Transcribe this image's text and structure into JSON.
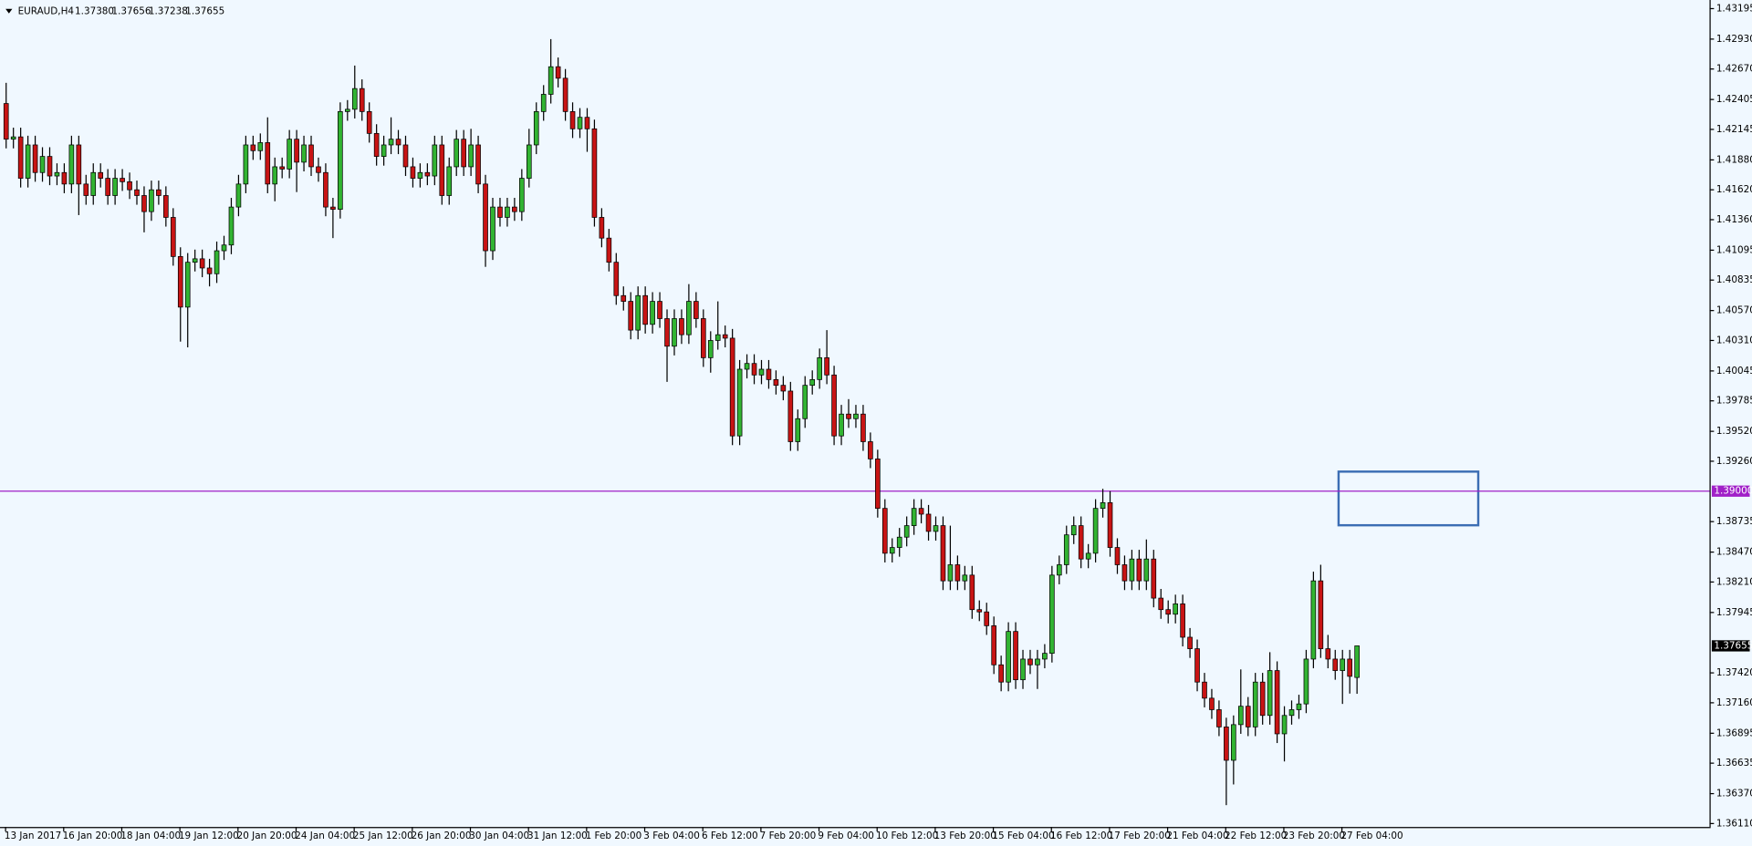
{
  "chart_data": {
    "type": "candlestick",
    "title": "EURAUD,H4",
    "title_values": [
      "1.37380",
      "1.37656",
      "1.37238",
      "1.37655"
    ],
    "up_color": "#32b432",
    "down_color": "#c81414",
    "ylim": [
      1.3608,
      1.4327
    ],
    "yticks": [
      1.43195,
      {
        "value": 1.4293,
        "label": "1.42930"
      },
      {
        "value": 1.4267,
        "label": "1.42670"
      },
      1.42405,
      1.42145,
      {
        "value": 1.4188,
        "label": "1.41880"
      },
      {
        "value": 1.4162,
        "label": "1.41620"
      },
      {
        "value": 1.4136,
        "label": "1.41360"
      },
      1.41095,
      1.40835,
      {
        "value": 1.4057,
        "label": "1.40570"
      },
      {
        "value": 1.4031,
        "label": "1.40310"
      },
      1.40045,
      1.39785,
      {
        "value": 1.3952,
        "label": "1.39520"
      },
      {
        "value": 1.3926,
        "label": "1.39260"
      },
      1.38735,
      {
        "value": 1.3847,
        "label": "1.38470"
      },
      {
        "value": 1.3821,
        "label": "1.38210"
      },
      1.37945,
      {
        "value": 1.3742,
        "label": "1.37420"
      },
      {
        "value": 1.3716,
        "label": "1.37160"
      },
      1.36895,
      1.36635,
      {
        "value": 1.3637,
        "label": "1.36370"
      },
      {
        "value": 1.3611,
        "label": "1.36110"
      }
    ],
    "price_line": {
      "value": 1.39,
      "label": "1.39000",
      "color": "#a020c8"
    },
    "last_price": {
      "value": 1.37655,
      "label": "1.37655"
    },
    "categories": [
      "13 Jan 2017",
      null,
      null,
      null,
      null,
      null,
      null,
      null,
      "16 Jan 20:00",
      null,
      null,
      null,
      null,
      null,
      null,
      null,
      "18 Jan 04:00",
      null,
      null,
      null,
      null,
      null,
      null,
      null,
      "19 Jan 12:00",
      null,
      null,
      null,
      null,
      null,
      null,
      null,
      "20 Jan 20:00",
      null,
      null,
      null,
      null,
      null,
      null,
      null,
      "24 Jan 04:00",
      null,
      null,
      null,
      null,
      null,
      null,
      null,
      "25 Jan 12:00",
      null,
      null,
      null,
      null,
      null,
      null,
      null,
      "26 Jan 20:00",
      null,
      null,
      null,
      null,
      null,
      null,
      null,
      "30 Jan 04:00",
      null,
      null,
      null,
      null,
      null,
      null,
      null,
      "31 Jan 12:00",
      null,
      null,
      null,
      null,
      null,
      null,
      null,
      "1 Feb 20:00",
      null,
      null,
      null,
      null,
      null,
      null,
      null,
      "3 Feb 04:00",
      null,
      null,
      null,
      null,
      null,
      null,
      null,
      "6 Feb 12:00",
      null,
      null,
      null,
      null,
      null,
      null,
      null,
      "7 Feb 20:00",
      null,
      null,
      null,
      null,
      null,
      null,
      null,
      "9 Feb 04:00",
      null,
      null,
      null,
      null,
      null,
      null,
      null,
      "10 Feb 12:00",
      null,
      null,
      null,
      null,
      null,
      null,
      null,
      "13 Feb 20:00",
      null,
      null,
      null,
      null,
      null,
      null,
      null,
      "15 Feb 04:00",
      null,
      null,
      null,
      null,
      null,
      null,
      null,
      "16 Feb 12:00",
      null,
      null,
      null,
      null,
      null,
      null,
      null,
      "17 Feb 20:00",
      null,
      null,
      null,
      null,
      null,
      null,
      null,
      "21 Feb 04:00",
      null,
      null,
      null,
      null,
      null,
      null,
      null,
      "22 Feb 12:00",
      null,
      null,
      null,
      null,
      null,
      null,
      null,
      "23 Feb 20:00",
      null,
      null,
      null,
      null,
      null,
      null,
      null,
      "27 Feb 04:00",
      null,
      null
    ],
    "ohlc": [
      [
        1.4237,
        1.4255,
        1.4198,
        1.4206
      ],
      [
        1.4206,
        1.4216,
        1.4198,
        1.4208
      ],
      [
        1.4208,
        1.4216,
        1.4164,
        1.4172
      ],
      [
        1.4172,
        1.4209,
        1.4164,
        1.4201
      ],
      [
        1.4201,
        1.4209,
        1.4169,
        1.4177
      ],
      [
        1.4177,
        1.4199,
        1.4169,
        1.4191
      ],
      [
        1.4191,
        1.4199,
        1.4166,
        1.4174
      ],
      [
        1.4174,
        1.4185,
        1.4166,
        1.4177
      ],
      [
        1.4177,
        1.4185,
        1.4159,
        1.4167
      ],
      [
        1.4167,
        1.4209,
        1.4159,
        1.4201
      ],
      [
        1.4201,
        1.4209,
        1.414,
        1.4167
      ],
      [
        1.4167,
        1.4175,
        1.4149,
        1.4157
      ],
      [
        1.4157,
        1.4185,
        1.4149,
        1.4177
      ],
      [
        1.4177,
        1.4185,
        1.4164,
        1.4172
      ],
      [
        1.4172,
        1.418,
        1.4149,
        1.4157
      ],
      [
        1.4157,
        1.418,
        1.4149,
        1.4172
      ],
      [
        1.4172,
        1.418,
        1.4161,
        1.4169
      ],
      [
        1.4169,
        1.4177,
        1.4154,
        1.4162
      ],
      [
        1.4162,
        1.417,
        1.4149,
        1.4157
      ],
      [
        1.4157,
        1.4165,
        1.4125,
        1.4143
      ],
      [
        1.4143,
        1.417,
        1.4135,
        1.4162
      ],
      [
        1.4162,
        1.417,
        1.4149,
        1.4157
      ],
      [
        1.4157,
        1.4165,
        1.413,
        1.4138
      ],
      [
        1.4138,
        1.4146,
        1.4096,
        1.4104
      ],
      [
        1.4104,
        1.4112,
        1.403,
        1.406
      ],
      [
        1.406,
        1.4107,
        1.4025,
        1.4099
      ],
      [
        1.4099,
        1.411,
        1.4091,
        1.4102
      ],
      [
        1.4102,
        1.411,
        1.4086,
        1.4094
      ],
      [
        1.4094,
        1.4102,
        1.4078,
        1.4089
      ],
      [
        1.4089,
        1.4117,
        1.4081,
        1.4109
      ],
      [
        1.4109,
        1.4122,
        1.4101,
        1.4114
      ],
      [
        1.4114,
        1.4155,
        1.4106,
        1.4147
      ],
      [
        1.4147,
        1.4175,
        1.4139,
        1.4167
      ],
      [
        1.4167,
        1.4209,
        1.4159,
        1.4201
      ],
      [
        1.4201,
        1.4209,
        1.4188,
        1.4196
      ],
      [
        1.4196,
        1.4211,
        1.4188,
        1.4203
      ],
      [
        1.4203,
        1.4225,
        1.4159,
        1.4167
      ],
      [
        1.4167,
        1.419,
        1.4152,
        1.4182
      ],
      [
        1.4182,
        1.419,
        1.4172,
        1.418
      ],
      [
        1.418,
        1.4214,
        1.4172,
        1.4206
      ],
      [
        1.4206,
        1.4214,
        1.416,
        1.4186
      ],
      [
        1.4186,
        1.4209,
        1.4178,
        1.4201
      ],
      [
        1.4201,
        1.4209,
        1.4174,
        1.4182
      ],
      [
        1.4182,
        1.419,
        1.4169,
        1.4177
      ],
      [
        1.4177,
        1.4185,
        1.4139,
        1.4147
      ],
      [
        1.4147,
        1.4155,
        1.412,
        1.4145
      ],
      [
        1.4145,
        1.4238,
        1.4137,
        1.423
      ],
      [
        1.423,
        1.424,
        1.4222,
        1.4232
      ],
      [
        1.4232,
        1.427,
        1.4224,
        1.425
      ],
      [
        1.425,
        1.4258,
        1.4222,
        1.423
      ],
      [
        1.423,
        1.4238,
        1.4203,
        1.4211
      ],
      [
        1.4211,
        1.4219,
        1.4183,
        1.4191
      ],
      [
        1.4191,
        1.4209,
        1.4183,
        1.4201
      ],
      [
        1.4201,
        1.4225,
        1.4193,
        1.4206
      ],
      [
        1.4206,
        1.4214,
        1.4193,
        1.4201
      ],
      [
        1.4201,
        1.4209,
        1.4174,
        1.4182
      ],
      [
        1.4182,
        1.419,
        1.4164,
        1.4172
      ],
      [
        1.4172,
        1.4185,
        1.4164,
        1.4177
      ],
      [
        1.4177,
        1.4185,
        1.4166,
        1.4174
      ],
      [
        1.4174,
        1.4209,
        1.4166,
        1.4201
      ],
      [
        1.4201,
        1.4209,
        1.4149,
        1.4157
      ],
      [
        1.4157,
        1.419,
        1.4149,
        1.4182
      ],
      [
        1.4182,
        1.4214,
        1.4174,
        1.4206
      ],
      [
        1.4206,
        1.4214,
        1.4174,
        1.4182
      ],
      [
        1.4182,
        1.4215,
        1.4174,
        1.4201
      ],
      [
        1.4201,
        1.4209,
        1.4159,
        1.4167
      ],
      [
        1.4167,
        1.4175,
        1.4095,
        1.4109
      ],
      [
        1.4109,
        1.4155,
        1.4101,
        1.4147
      ],
      [
        1.4147,
        1.4155,
        1.413,
        1.4138
      ],
      [
        1.4138,
        1.4155,
        1.413,
        1.4147
      ],
      [
        1.4147,
        1.4155,
        1.4135,
        1.4143
      ],
      [
        1.4143,
        1.418,
        1.4135,
        1.4172
      ],
      [
        1.4172,
        1.4215,
        1.4164,
        1.4201
      ],
      [
        1.4201,
        1.4238,
        1.4193,
        1.423
      ],
      [
        1.423,
        1.4253,
        1.4222,
        1.4245
      ],
      [
        1.4245,
        1.4293,
        1.4237,
        1.4269
      ],
      [
        1.4269,
        1.4277,
        1.4251,
        1.4259
      ],
      [
        1.4259,
        1.4267,
        1.4222,
        1.423
      ],
      [
        1.423,
        1.4238,
        1.4207,
        1.4215
      ],
      [
        1.4215,
        1.4233,
        1.4207,
        1.4225
      ],
      [
        1.4225,
        1.4233,
        1.4195,
        1.4215
      ],
      [
        1.4215,
        1.4223,
        1.413,
        1.4138
      ],
      [
        1.4138,
        1.4146,
        1.4112,
        1.412
      ],
      [
        1.412,
        1.4128,
        1.4091,
        1.4099
      ],
      [
        1.4099,
        1.4107,
        1.4062,
        1.407
      ],
      [
        1.407,
        1.4078,
        1.4057,
        1.4065
      ],
      [
        1.4065,
        1.4073,
        1.4032,
        1.404
      ],
      [
        1.404,
        1.4078,
        1.4032,
        1.407
      ],
      [
        1.407,
        1.4078,
        1.4037,
        1.4045
      ],
      [
        1.4045,
        1.4073,
        1.4037,
        1.4065
      ],
      [
        1.4065,
        1.4073,
        1.4042,
        1.405
      ],
      [
        1.405,
        1.4058,
        1.3995,
        1.4026
      ],
      [
        1.4026,
        1.4058,
        1.4018,
        1.405
      ],
      [
        1.405,
        1.4058,
        1.4028,
        1.4036
      ],
      [
        1.4036,
        1.408,
        1.4028,
        1.4065
      ],
      [
        1.4065,
        1.4073,
        1.4042,
        1.405
      ],
      [
        1.405,
        1.4058,
        1.4008,
        1.4016
      ],
      [
        1.4016,
        1.4039,
        1.4003,
        1.4031
      ],
      [
        1.4031,
        1.4065,
        1.4023,
        1.4036
      ],
      [
        1.4036,
        1.4044,
        1.4025,
        1.4033
      ],
      [
        1.4033,
        1.4041,
        1.394,
        1.3948
      ],
      [
        1.3948,
        1.4014,
        1.394,
        1.4006
      ],
      [
        1.4006,
        1.4019,
        1.3998,
        1.4011
      ],
      [
        1.4011,
        1.4019,
        1.3993,
        1.4001
      ],
      [
        1.4001,
        1.4014,
        1.3993,
        1.4006
      ],
      [
        1.4006,
        1.4014,
        1.3989,
        1.3997
      ],
      [
        1.3997,
        1.4005,
        1.3984,
        1.3992
      ],
      [
        1.3992,
        1.4,
        1.3979,
        1.3987
      ],
      [
        1.3987,
        1.3995,
        1.3935,
        1.3943
      ],
      [
        1.3943,
        1.3971,
        1.3935,
        1.3963
      ],
      [
        1.3963,
        1.4,
        1.3955,
        1.3992
      ],
      [
        1.3992,
        1.4005,
        1.3984,
        1.3997
      ],
      [
        1.3997,
        1.4024,
        1.3989,
        1.4016
      ],
      [
        1.4016,
        1.404,
        1.3993,
        1.4001
      ],
      [
        1.4001,
        1.4009,
        1.394,
        1.3948
      ],
      [
        1.3948,
        1.3975,
        1.394,
        1.3967
      ],
      [
        1.3967,
        1.398,
        1.3955,
        1.3963
      ],
      [
        1.3963,
        1.3975,
        1.3955,
        1.3967
      ],
      [
        1.3967,
        1.3975,
        1.3935,
        1.3943
      ],
      [
        1.3943,
        1.3951,
        1.392,
        1.3928
      ],
      [
        1.3928,
        1.3936,
        1.3877,
        1.3885
      ],
      [
        1.3885,
        1.3893,
        1.3838,
        1.3846
      ],
      [
        1.3846,
        1.3859,
        1.3838,
        1.3851
      ],
      [
        1.3851,
        1.3868,
        1.3843,
        1.386
      ],
      [
        1.386,
        1.3878,
        1.3852,
        1.387
      ],
      [
        1.387,
        1.3893,
        1.3862,
        1.3885
      ],
      [
        1.3885,
        1.3893,
        1.3872,
        1.388
      ],
      [
        1.388,
        1.3888,
        1.3857,
        1.3865
      ],
      [
        1.3865,
        1.3878,
        1.3857,
        1.387
      ],
      [
        1.387,
        1.3878,
        1.3814,
        1.3822
      ],
      [
        1.3822,
        1.387,
        1.3814,
        1.3836
      ],
      [
        1.3836,
        1.3844,
        1.3814,
        1.3822
      ],
      [
        1.3822,
        1.3835,
        1.3814,
        1.3827
      ],
      [
        1.3827,
        1.3835,
        1.3789,
        1.3797
      ],
      [
        1.3797,
        1.3805,
        1.3787,
        1.3795
      ],
      [
        1.3795,
        1.3803,
        1.3775,
        1.3783
      ],
      [
        1.3783,
        1.3791,
        1.3741,
        1.3749
      ],
      [
        1.3749,
        1.3757,
        1.3726,
        1.3734
      ],
      [
        1.3734,
        1.3786,
        1.3726,
        1.3778
      ],
      [
        1.3778,
        1.3786,
        1.3728,
        1.3736
      ],
      [
        1.3736,
        1.3762,
        1.3728,
        1.3754
      ],
      [
        1.3754,
        1.3762,
        1.3741,
        1.3749
      ],
      [
        1.3749,
        1.3762,
        1.3728,
        1.3754
      ],
      [
        1.3754,
        1.3767,
        1.3746,
        1.3759
      ],
      [
        1.3759,
        1.3835,
        1.3751,
        1.3827
      ],
      [
        1.3827,
        1.3844,
        1.3819,
        1.3836
      ],
      [
        1.3836,
        1.387,
        1.3828,
        1.3862
      ],
      [
        1.3862,
        1.3878,
        1.3854,
        1.387
      ],
      [
        1.387,
        1.3878,
        1.3833,
        1.3841
      ],
      [
        1.3841,
        1.3854,
        1.3833,
        1.3846
      ],
      [
        1.3846,
        1.3893,
        1.3838,
        1.3885
      ],
      [
        1.3885,
        1.3902,
        1.3877,
        1.389
      ],
      [
        1.389,
        1.39,
        1.3843,
        1.3851
      ],
      [
        1.3851,
        1.3859,
        1.3828,
        1.3836
      ],
      [
        1.3836,
        1.3844,
        1.3814,
        1.3822
      ],
      [
        1.3822,
        1.3849,
        1.3814,
        1.3841
      ],
      [
        1.3841,
        1.3849,
        1.3814,
        1.3822
      ],
      [
        1.3822,
        1.3858,
        1.3814,
        1.3841
      ],
      [
        1.3841,
        1.3849,
        1.3799,
        1.3807
      ],
      [
        1.3807,
        1.3815,
        1.3789,
        1.3797
      ],
      [
        1.3797,
        1.3805,
        1.3785,
        1.3793
      ],
      [
        1.3793,
        1.381,
        1.3785,
        1.3802
      ],
      [
        1.3802,
        1.381,
        1.3765,
        1.3773
      ],
      [
        1.3773,
        1.3781,
        1.3755,
        1.3763
      ],
      [
        1.3763,
        1.3771,
        1.3726,
        1.3734
      ],
      [
        1.3734,
        1.3742,
        1.3712,
        1.372
      ],
      [
        1.372,
        1.3728,
        1.3702,
        1.371
      ],
      [
        1.371,
        1.3718,
        1.3687,
        1.3695
      ],
      [
        1.3695,
        1.3703,
        1.3627,
        1.3666
      ],
      [
        1.3666,
        1.3705,
        1.3645,
        1.3697
      ],
      [
        1.3697,
        1.3745,
        1.3689,
        1.3713
      ],
      [
        1.3713,
        1.3721,
        1.3687,
        1.3695
      ],
      [
        1.3695,
        1.3742,
        1.3687,
        1.3734
      ],
      [
        1.3734,
        1.3742,
        1.3697,
        1.3705
      ],
      [
        1.3705,
        1.376,
        1.3697,
        1.3744
      ],
      [
        1.3744,
        1.3752,
        1.3681,
        1.3689
      ],
      [
        1.3689,
        1.3713,
        1.3665,
        1.3705
      ],
      [
        1.3705,
        1.3718,
        1.3697,
        1.371
      ],
      [
        1.371,
        1.3723,
        1.3702,
        1.3715
      ],
      [
        1.3715,
        1.3762,
        1.3707,
        1.3754
      ],
      [
        1.3754,
        1.383,
        1.3746,
        1.3822
      ],
      [
        1.3822,
        1.3836,
        1.3755,
        1.3763
      ],
      [
        1.3763,
        1.3775,
        1.3746,
        1.3754
      ],
      [
        1.3754,
        1.3762,
        1.3736,
        1.3744
      ],
      [
        1.3744,
        1.3762,
        1.3715,
        1.3754
      ],
      [
        1.3754,
        1.3762,
        1.3724,
        1.3739
      ],
      [
        1.3738,
        1.37656,
        1.37238,
        1.37655
      ]
    ]
  }
}
